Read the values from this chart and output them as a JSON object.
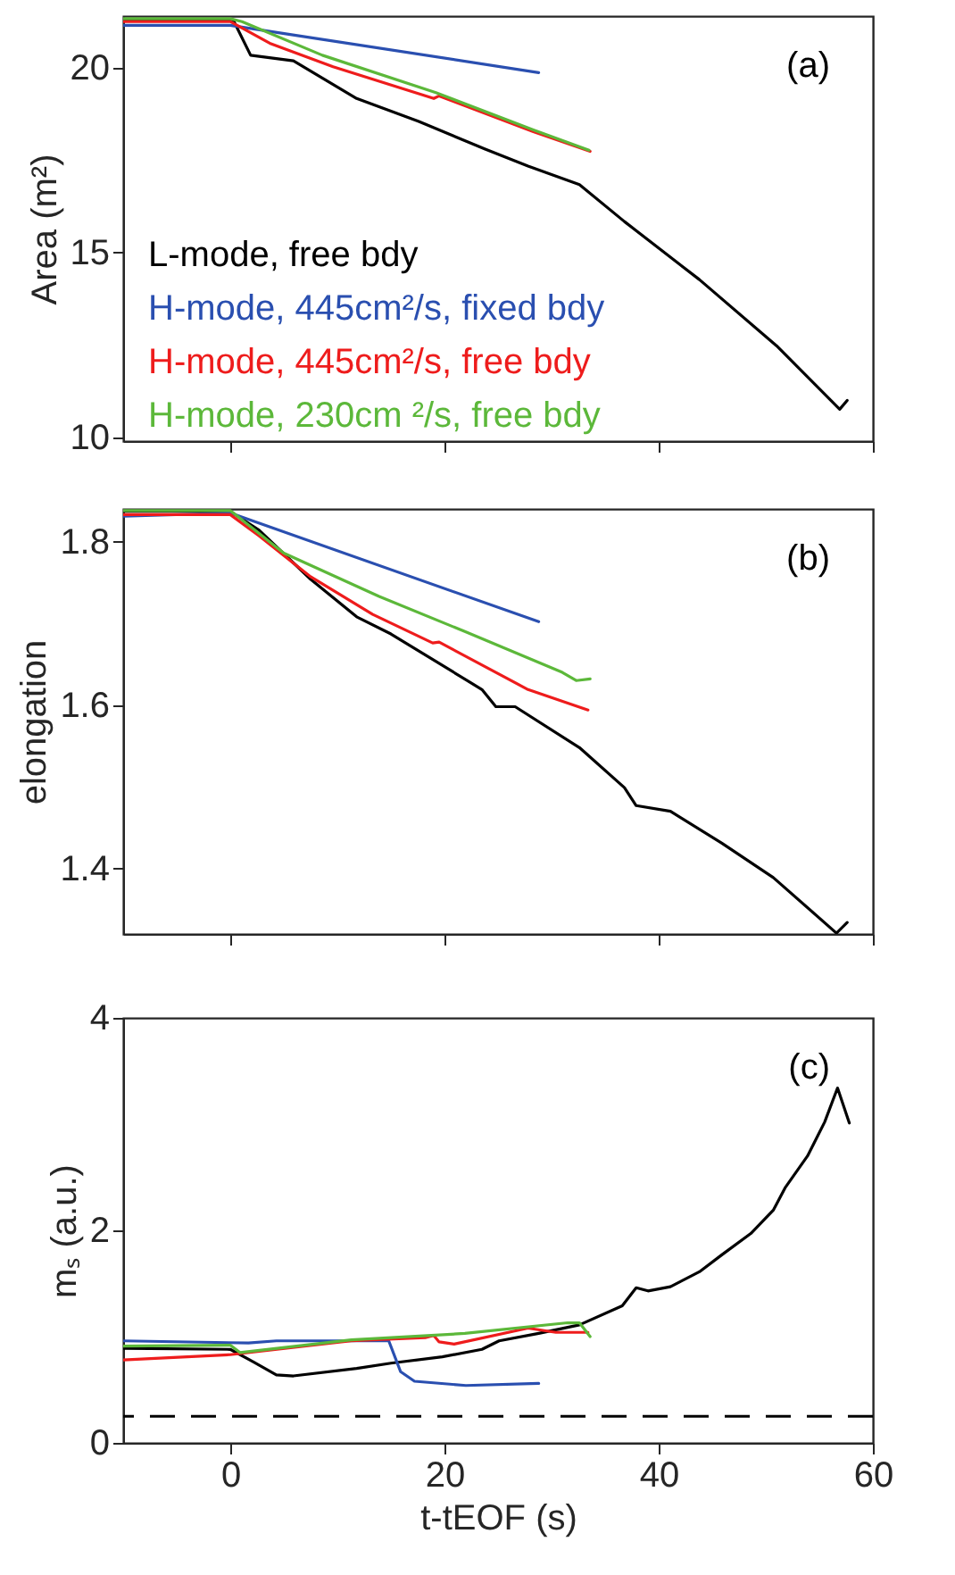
{
  "chart_data": [
    {
      "type": "line",
      "ylabel": "Area (m²)",
      "xlim": [
        -10,
        60
      ],
      "xticks": [
        0,
        20,
        40,
        60
      ],
      "ylim": [
        9.9,
        21.4
      ],
      "yticks": [
        10,
        15,
        20
      ],
      "tick_labels": "y",
      "grid": false,
      "legend": "bottom left",
      "annotations": [
        "(a)"
      ],
      "series": [
        {
          "name": "L-mode, free bdy",
          "color": "#000000",
          "x": [
            -10,
            0.3,
            1.9,
            5.9,
            11.8,
            17.6,
            23.8,
            27.8,
            32.6,
            36.8,
            43.8,
            51.0,
            56.9,
            57.6
          ],
          "values": [
            21.28,
            21.28,
            20.34,
            20.19,
            19.17,
            18.55,
            17.8,
            17.34,
            16.84,
            15.84,
            14.27,
            12.48,
            10.76,
            11.0
          ]
        },
        {
          "name": "H-mode, 445cm²/s, fixed bdy",
          "color": "#2a4fb0",
          "x": [
            -10,
            0,
            28.8
          ],
          "values": [
            21.15,
            21.15,
            19.87
          ]
        },
        {
          "name": "H-mode, 445cm²/s, free bdy",
          "color": "#ee1c1c",
          "x": [
            -10,
            0,
            3.8,
            9.6,
            19.0,
            19.5,
            28.3,
            33.6
          ],
          "values": [
            21.25,
            21.25,
            20.65,
            20.03,
            19.17,
            19.24,
            18.27,
            17.74
          ]
        },
        {
          "name": "H-mode, 230cm ²/s, free bdy",
          "color": "#5cb83a",
          "x": [
            -10,
            0,
            1.1,
            8.6,
            19.2,
            28.3,
            33.5
          ],
          "values": [
            21.33,
            21.33,
            21.25,
            20.34,
            19.33,
            18.32,
            17.77
          ]
        }
      ]
    },
    {
      "type": "line",
      "ylabel": "elongation",
      "xlim": [
        -10,
        60
      ],
      "xticks": [
        0,
        20,
        40,
        60
      ],
      "ylim": [
        1.32,
        1.84
      ],
      "yticks": [
        1.4,
        1.6,
        1.8
      ],
      "tick_labels": "y",
      "grid": false,
      "annotations": [
        "(b)"
      ],
      "series": [
        {
          "color": "#000000",
          "x": [
            -10,
            0,
            2.7,
            7.5,
            11.8,
            15.0,
            23.5,
            24.8,
            26.6,
            32.6,
            36.8,
            37.9,
            41.1,
            45.9,
            50.7,
            56.6,
            57.6
          ],
          "values": [
            1.837,
            1.837,
            1.814,
            1.754,
            1.708,
            1.687,
            1.619,
            1.598,
            1.598,
            1.548,
            1.499,
            1.477,
            1.47,
            1.431,
            1.389,
            1.321,
            1.334
          ]
        },
        {
          "color": "#2a4fb0",
          "x": [
            -10,
            0,
            28.8
          ],
          "values": [
            1.831,
            1.835,
            1.702
          ]
        },
        {
          "color": "#ee1c1c",
          "x": [
            -10,
            0,
            2.7,
            7.5,
            13.3,
            18.9,
            19.5,
            27.8,
            33.4
          ],
          "values": [
            1.833,
            1.833,
            1.807,
            1.757,
            1.711,
            1.676,
            1.677,
            1.619,
            1.594
          ]
        },
        {
          "color": "#5cb83a",
          "x": [
            -10,
            0,
            5.0,
            13.9,
            21.9,
            31.0,
            32.3,
            33.6
          ],
          "values": [
            1.838,
            1.838,
            1.786,
            1.733,
            1.69,
            1.64,
            1.63,
            1.632
          ]
        }
      ]
    },
    {
      "type": "line",
      "xlabel": "t-tEOF (s)",
      "ylabel": "mₛ (a.u.)",
      "xlim": [
        -10,
        60
      ],
      "xticks": [
        0,
        20,
        40,
        60
      ],
      "ylim": [
        0,
        4
      ],
      "yticks": [
        0,
        2,
        4
      ],
      "grid": false,
      "annotations": [
        "(c)"
      ],
      "ref_lines": [
        {
          "axis": "y",
          "value": 0.25,
          "color": "#000000",
          "line_style": "dashed"
        }
      ],
      "series": [
        {
          "color": "#000000",
          "x": [
            -10,
            0,
            2.2,
            4.3,
            5.9,
            11.8,
            15.0,
            19.8,
            23.5,
            25.1,
            28.8,
            32.6,
            36.6,
            37.9,
            39.0,
            41.1,
            43.8,
            45.9,
            48.6,
            50.7,
            51.8,
            53.9,
            55.5,
            56.7,
            57.8
          ],
          "values": [
            0.89,
            0.88,
            0.76,
            0.64,
            0.63,
            0.7,
            0.75,
            0.81,
            0.88,
            0.96,
            1.03,
            1.11,
            1.29,
            1.46,
            1.43,
            1.47,
            1.61,
            1.77,
            1.97,
            2.19,
            2.4,
            2.7,
            3.02,
            3.34,
            3.01
          ]
        },
        {
          "color": "#2a4fb0",
          "x": [
            -10,
            1.7,
            4.3,
            14.8,
            15.9,
            17.2,
            22.0,
            28.8
          ],
          "values": [
            0.96,
            0.94,
            0.96,
            0.96,
            0.67,
            0.58,
            0.54,
            0.56
          ]
        },
        {
          "color": "#ee1c1c",
          "x": [
            -10,
            0,
            11.3,
            18.2,
            19.0,
            19.5,
            20.9,
            27.8,
            30.4,
            33.4
          ],
          "values": [
            0.78,
            0.83,
            0.96,
            0.99,
            1.01,
            0.95,
            0.93,
            1.08,
            1.04,
            1.04
          ]
        },
        {
          "color": "#5cb83a",
          "x": [
            -10,
            0,
            0.9,
            11.3,
            21.9,
            31.5,
            32.6,
            33.6
          ],
          "values": [
            0.91,
            0.92,
            0.85,
            0.97,
            1.03,
            1.13,
            1.13,
            1.0
          ]
        }
      ]
    }
  ]
}
